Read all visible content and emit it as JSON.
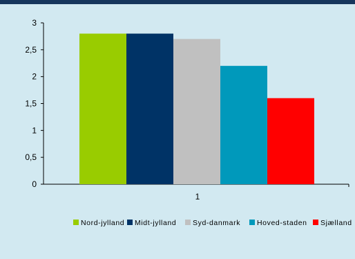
{
  "chart_data": {
    "type": "bar",
    "categories": [
      "1"
    ],
    "series": [
      {
        "name": "Nord-jylland",
        "values": [
          2.8
        ],
        "color": "#99cc00"
      },
      {
        "name": "Midt-jylland",
        "values": [
          2.8
        ],
        "color": "#003366"
      },
      {
        "name": "Syd-danmark",
        "values": [
          2.7
        ],
        "color": "#c0c0c0"
      },
      {
        "name": "Hoved-staden",
        "values": [
          2.2
        ],
        "color": "#0099bb"
      },
      {
        "name": "Sjælland",
        "values": [
          1.6
        ],
        "color": "#ff0000"
      }
    ],
    "y_ticks": [
      "0",
      "0,5",
      "1",
      "1,5",
      "2",
      "2,5",
      "3"
    ],
    "ylim": [
      0,
      3
    ],
    "grid": false,
    "legend_position": "bottom",
    "background_color": "#d2e9f1",
    "header_color": "#16365c"
  }
}
